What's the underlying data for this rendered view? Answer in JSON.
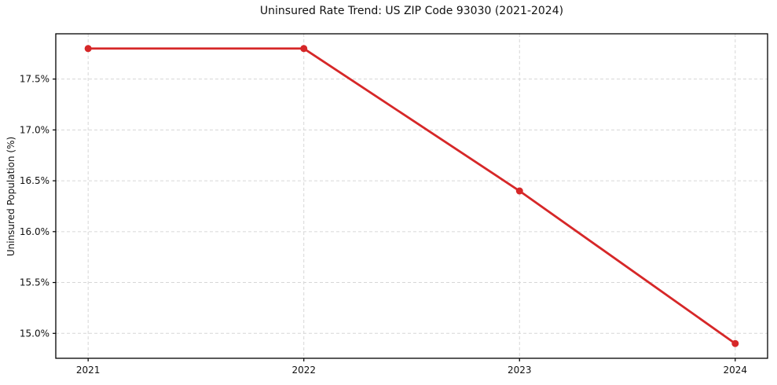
{
  "chart_data": {
    "type": "line",
    "title": "Uninsured Rate Trend: US ZIP Code 93030 (2021-2024)",
    "xlabel": "",
    "ylabel": "Uninsured Population (%)",
    "x": [
      2021,
      2022,
      2023,
      2024
    ],
    "xticks": [
      "2021",
      "2022",
      "2023",
      "2024"
    ],
    "ytick_values": [
      15.0,
      15.5,
      16.0,
      16.5,
      17.0,
      17.5
    ],
    "yticks": [
      "15.0%",
      "15.5%",
      "16.0%",
      "16.5%",
      "17.0%",
      "17.5%"
    ],
    "series": [
      {
        "name": "Uninsured rate",
        "values": [
          17.8,
          17.8,
          16.4,
          14.9
        ]
      }
    ],
    "xlim": [
      2020.85,
      2024.15
    ],
    "ylim": [
      14.755,
      17.945
    ],
    "grid": true,
    "legend_position": "none",
    "line_color": "#d62728",
    "marker_color": "#d62728",
    "grid_color": "#d6d6d6",
    "spine_color": "#000000",
    "text_color": "#111111"
  }
}
